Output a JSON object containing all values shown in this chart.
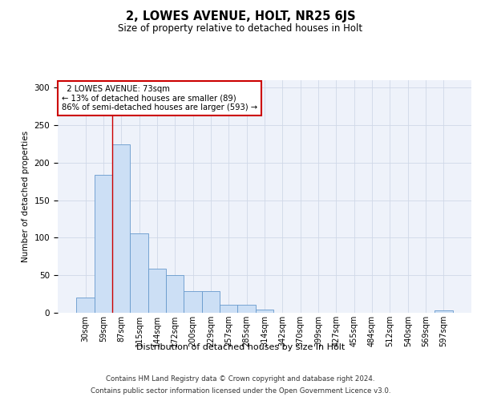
{
  "title": "2, LOWES AVENUE, HOLT, NR25 6JS",
  "subtitle": "Size of property relative to detached houses in Holt",
  "xlabel": "Distribution of detached houses by size in Holt",
  "ylabel": "Number of detached properties",
  "footer_line1": "Contains HM Land Registry data © Crown copyright and database right 2024.",
  "footer_line2": "Contains public sector information licensed under the Open Government Licence v3.0.",
  "bar_labels": [
    "30sqm",
    "59sqm",
    "87sqm",
    "115sqm",
    "144sqm",
    "172sqm",
    "200sqm",
    "229sqm",
    "257sqm",
    "285sqm",
    "314sqm",
    "342sqm",
    "370sqm",
    "399sqm",
    "427sqm",
    "455sqm",
    "484sqm",
    "512sqm",
    "540sqm",
    "569sqm",
    "597sqm"
  ],
  "bar_values": [
    20,
    184,
    224,
    106,
    59,
    50,
    29,
    29,
    11,
    11,
    4,
    0,
    0,
    0,
    0,
    0,
    0,
    0,
    0,
    0,
    3
  ],
  "bar_color": "#ccdff5",
  "bar_edge_color": "#6699cc",
  "grid_color": "#d0d8e8",
  "background_color": "#eef2fa",
  "annotation_line1": "  2 LOWES AVENUE: 73sqm",
  "annotation_line2": "← 13% of detached houses are smaller (89)",
  "annotation_line3": "86% of semi-detached houses are larger (593) →",
  "annotation_box_color": "#ffffff",
  "annotation_box_edge_color": "#cc0000",
  "vline_color": "#cc0000",
  "vline_x": 1.5,
  "ylim": [
    0,
    310
  ],
  "yticks": [
    0,
    50,
    100,
    150,
    200,
    250,
    300
  ]
}
